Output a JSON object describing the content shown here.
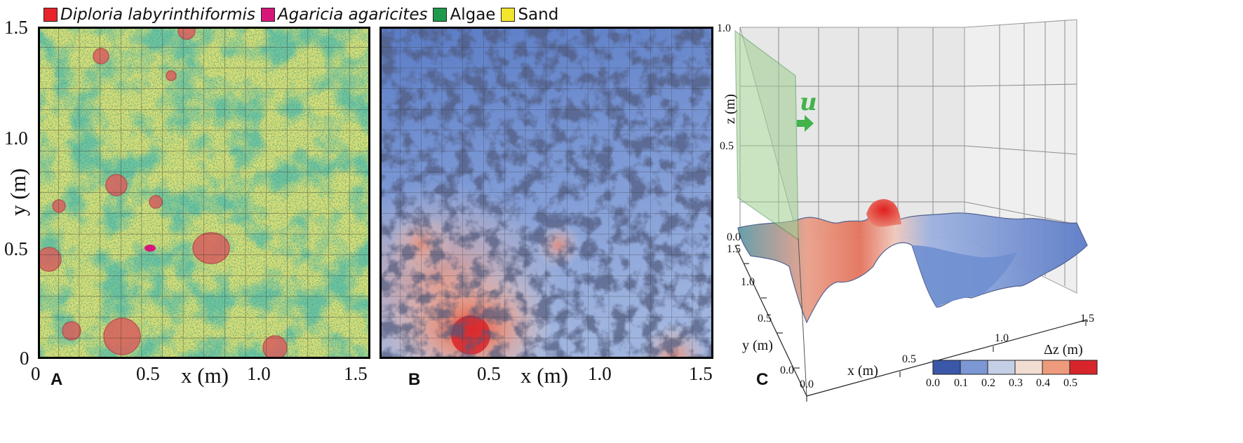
{
  "legend": [
    {
      "label": "Diploria labyrinthiformis",
      "color": "#e8242a",
      "italic": true
    },
    {
      "label": "Agaricia agaricites",
      "color": "#d6177a",
      "italic": true
    },
    {
      "label": "Algae",
      "color": "#1f9a4c",
      "italic": false
    },
    {
      "label": "Sand",
      "color": "#f2e52b",
      "italic": false
    }
  ],
  "panels": {
    "a": {
      "label": "A",
      "xlabel": "x (m)",
      "ylabel": "y (m)",
      "xticks": [
        "0",
        "0.5",
        "1.0",
        "1.5"
      ],
      "yticks": [
        "1.5",
        "1.0",
        "0.5",
        "0"
      ]
    },
    "b": {
      "label": "B",
      "xlabel": "x (m)",
      "xticks": [
        "0.5",
        "1.0",
        "1.5"
      ]
    },
    "c": {
      "label": "C",
      "zlabel": "z (m)",
      "xlabel": "x (m)",
      "ylabel": "y (m)",
      "flow_symbol": "u",
      "zticks": [
        "1.0",
        "0.5",
        "0.0"
      ],
      "yticks": [
        "1.5",
        "1.0",
        "0.5",
        "0.0"
      ],
      "xticks": [
        "0.0",
        "0.5",
        "1.0",
        "1.5"
      ],
      "colorbar": {
        "label": "Δz (m)",
        "ticks": [
          "0.0",
          "0.1",
          "0.2",
          "0.3",
          "0.4",
          "0.5"
        ],
        "colors": [
          "#3a57a8",
          "#7b97d4",
          "#c4cfe6",
          "#f2ddd3",
          "#ee9a7c",
          "#d8252b"
        ]
      }
    }
  }
}
